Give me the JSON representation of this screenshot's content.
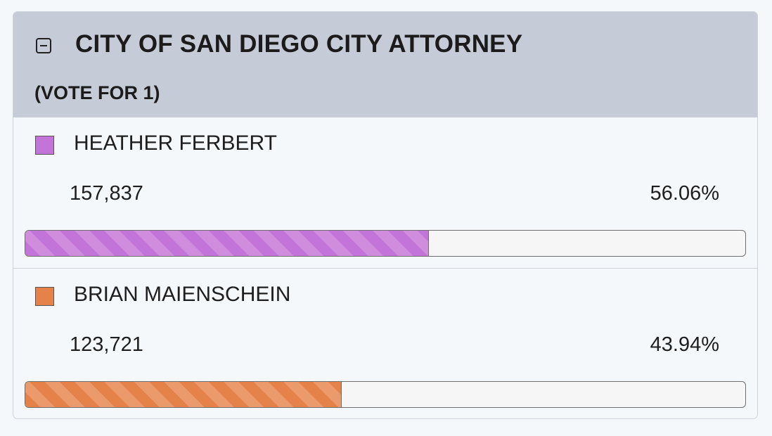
{
  "contest": {
    "title": "CITY OF SAN DIEGO CITY ATTORNEY",
    "vote_for": "(VOTE FOR 1)",
    "collapse_icon": "minus-square-icon"
  },
  "candidates": [
    {
      "name": "HEATHER FERBERT",
      "votes": "157,837",
      "percent": "56.06%",
      "share": 0.5606,
      "color": "#c374d8",
      "stripe_color": "#d08ddd"
    },
    {
      "name": "BRIAN MAIENSCHEIN",
      "votes": "123,721",
      "percent": "43.94%",
      "share": 0.4394,
      "color": "#e5824a",
      "stripe_color": "#eb9a6b"
    }
  ]
}
